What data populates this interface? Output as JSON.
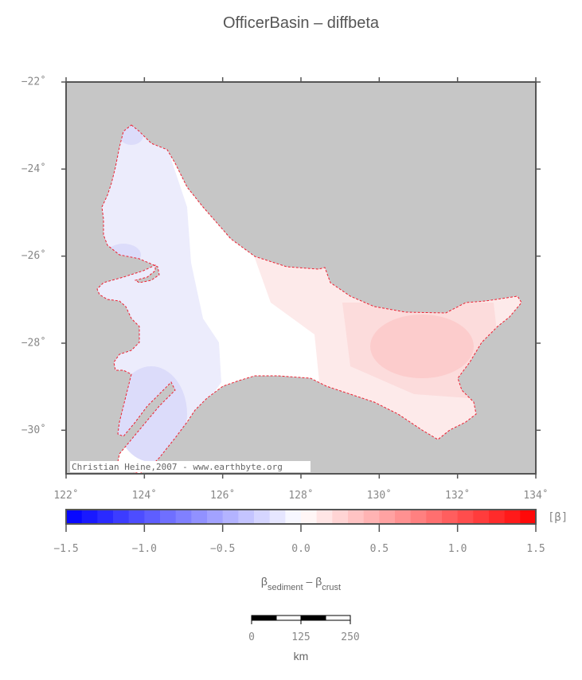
{
  "title": "OfficerBasin – diffbeta",
  "map": {
    "xlim": [
      122,
      134
    ],
    "ylim": [
      -31,
      -22
    ],
    "xticks": [
      {
        "value": 122,
        "label": "122˚"
      },
      {
        "value": 124,
        "label": "124˚"
      },
      {
        "value": 126,
        "label": "126˚"
      },
      {
        "value": 128,
        "label": "128˚"
      },
      {
        "value": 130,
        "label": "130˚"
      },
      {
        "value": 132,
        "label": "132˚"
      },
      {
        "value": 134,
        "label": "134˚"
      }
    ],
    "yticks": [
      {
        "value": -22,
        "label": "−22˚"
      },
      {
        "value": -24,
        "label": "−24˚"
      },
      {
        "value": -26,
        "label": "−26˚"
      },
      {
        "value": -28,
        "label": "−28˚"
      },
      {
        "value": -30,
        "label": "−30˚"
      }
    ],
    "credit": "Christian Heine,2007 - www.earthbyte.org"
  },
  "colorbar": {
    "lim": [
      -1.5,
      1.5
    ],
    "unit": "[β]",
    "ticks": [
      {
        "value": -1.5,
        "label": "−1.5"
      },
      {
        "value": -1,
        "label": "−1.0"
      },
      {
        "value": -0.5,
        "label": "−0.5"
      },
      {
        "value": 0,
        "label": "0.0"
      },
      {
        "value": 0.5,
        "label": "0.5"
      },
      {
        "value": 1,
        "label": "1.0"
      },
      {
        "value": 1.5,
        "label": "1.5"
      }
    ],
    "label": [
      {
        "text": "β"
      },
      {
        "text": "sediment",
        "sub": true
      },
      {
        "text": " – "
      },
      {
        "text": "β"
      },
      {
        "text": "crust",
        "sub": true
      }
    ]
  },
  "scale_bar": {
    "ticks": [
      0,
      125,
      250
    ],
    "unit": "km"
  }
}
